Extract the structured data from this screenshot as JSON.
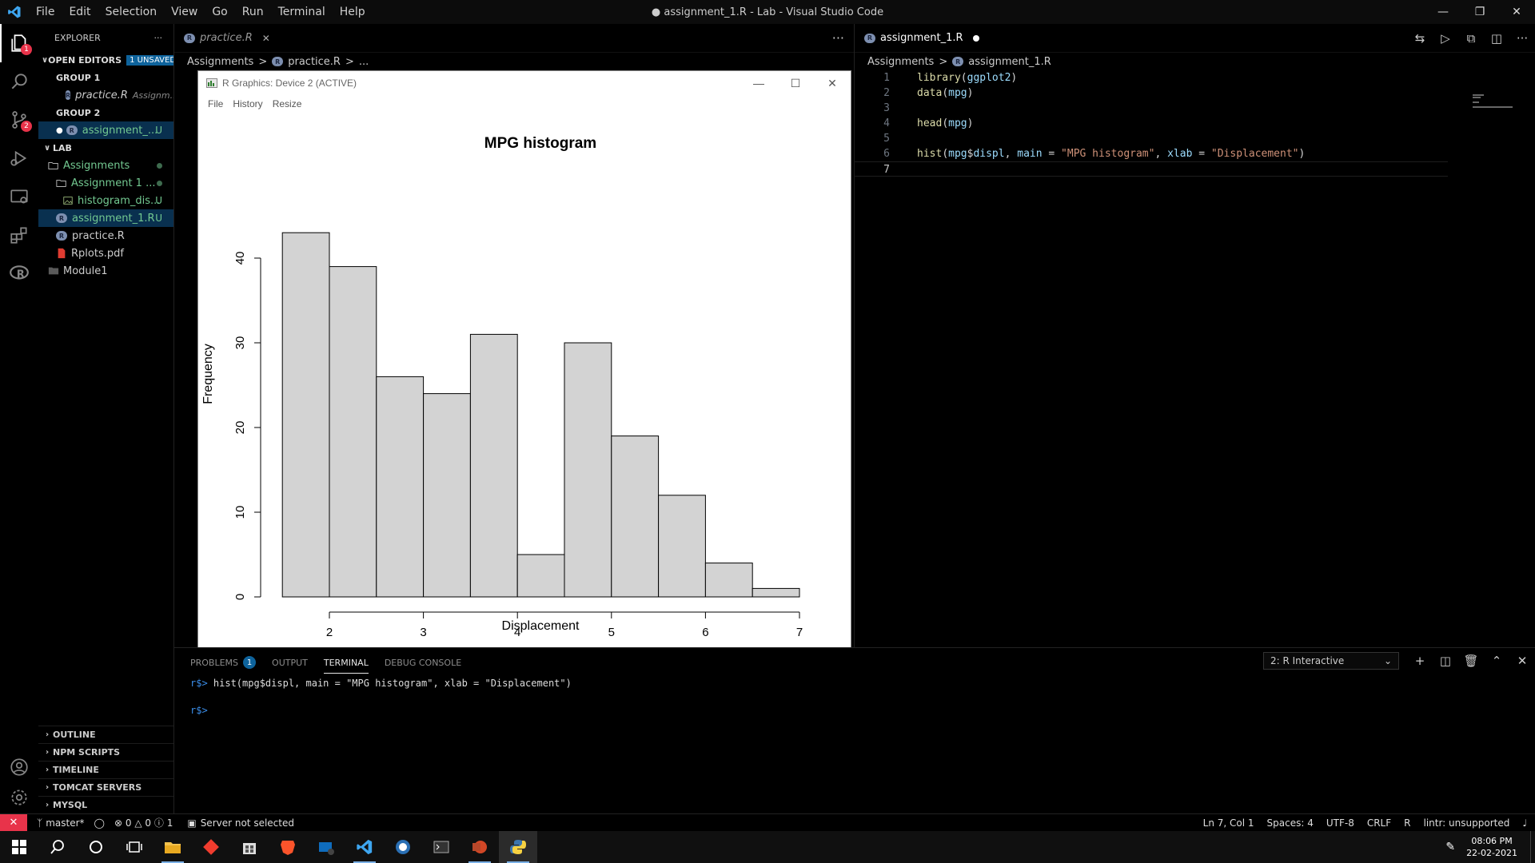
{
  "window": {
    "title": "● assignment_1.R - Lab - Visual Studio Code",
    "menu": [
      "File",
      "Edit",
      "Selection",
      "View",
      "Go",
      "Run",
      "Terminal",
      "Help"
    ]
  },
  "activity_bar": {
    "items": [
      "explorer-icon",
      "search-icon",
      "source-control-icon",
      "run-debug-icon",
      "remote-explorer-icon",
      "extensions-icon",
      "r-icon"
    ],
    "explorer_badge": "1",
    "scm_badge": "2",
    "bottom": [
      "account-icon",
      "settings-gear-icon"
    ]
  },
  "sidebar": {
    "title": "EXPLORER",
    "more": "···",
    "open_editors": {
      "label": "OPEN EDITORS",
      "badge": "1 UNSAVED",
      "group1_label": "GROUP 1",
      "group1_file": "practice.R",
      "group1_desc": "Assignm...",
      "group2_label": "GROUP 2",
      "group2_file": "assignment_...",
      "group2_status": "U"
    },
    "lab": {
      "label": "LAB",
      "items": [
        {
          "name": "Assignments",
          "status": ""
        },
        {
          "name": "Assignment 1 ...",
          "status": ""
        },
        {
          "name": "histogram_dis...",
          "status": "U"
        },
        {
          "name": "assignment_1.R",
          "status": "U"
        },
        {
          "name": "practice.R",
          "status": ""
        },
        {
          "name": "Rplots.pdf",
          "status": ""
        },
        {
          "name": "Module1",
          "status": ""
        }
      ]
    },
    "bottom_sections": [
      "OUTLINE",
      "NPM SCRIPTS",
      "TIMELINE",
      "TOMCAT SERVERS",
      "MYSQL"
    ]
  },
  "editor1": {
    "tab": "practice.R",
    "crumbs": [
      "Assignments",
      ">",
      "practice.R",
      ">",
      "..."
    ]
  },
  "editor2": {
    "tab": "assignment_1.R",
    "crumbs": [
      "Assignments",
      ">",
      "assignment_1.R"
    ],
    "lines": [
      {
        "n": "1",
        "parts": [
          [
            "fn",
            "library"
          ],
          [
            "op",
            "("
          ],
          [
            "kw",
            "ggplot2"
          ],
          [
            "op",
            ")"
          ]
        ]
      },
      {
        "n": "2",
        "parts": [
          [
            "fn",
            "data"
          ],
          [
            "op",
            "("
          ],
          [
            "kw",
            "mpg"
          ],
          [
            "op",
            ")"
          ]
        ]
      },
      {
        "n": "3",
        "parts": []
      },
      {
        "n": "4",
        "parts": [
          [
            "fn",
            "head"
          ],
          [
            "op",
            "("
          ],
          [
            "kw",
            "mpg"
          ],
          [
            "op",
            ")"
          ]
        ]
      },
      {
        "n": "5",
        "parts": []
      },
      {
        "n": "6",
        "parts": [
          [
            "fn",
            "hist"
          ],
          [
            "op",
            "("
          ],
          [
            "kw",
            "mpg"
          ],
          [
            "op",
            "$"
          ],
          [
            "kw",
            "displ"
          ],
          [
            "op",
            ", "
          ],
          [
            "kw",
            "main"
          ],
          [
            "op",
            " = "
          ],
          [
            "st",
            "\"MPG histogram\""
          ],
          [
            "op",
            ", "
          ],
          [
            "kw",
            "xlab"
          ],
          [
            "op",
            " = "
          ],
          [
            "st",
            "\"Displacement\""
          ],
          [
            "op",
            ")"
          ]
        ]
      },
      {
        "n": "7",
        "parts": []
      }
    ]
  },
  "rgraphics": {
    "title": "R Graphics: Device 2 (ACTIVE)",
    "menu": [
      "File",
      "History",
      "Resize"
    ]
  },
  "chart_data": {
    "type": "bar",
    "title": "MPG histogram",
    "xlabel": "Displacement",
    "ylabel": "Frequency",
    "bin_edges": [
      1.5,
      2,
      2.5,
      3,
      3.5,
      4,
      4.5,
      5,
      5.5,
      6,
      6.5,
      7
    ],
    "values": [
      43,
      39,
      26,
      24,
      31,
      5,
      30,
      19,
      12,
      4,
      1
    ],
    "x_ticks": [
      2,
      3,
      4,
      5,
      6,
      7
    ],
    "y_ticks": [
      0,
      10,
      20,
      30,
      40
    ],
    "xlim": [
      2,
      7
    ],
    "ylim": [
      0,
      40
    ],
    "grid": false,
    "bar_color": "#d3d3d3"
  },
  "panel": {
    "tabs": [
      "PROBLEMS",
      "OUTPUT",
      "TERMINAL",
      "DEBUG CONSOLE"
    ],
    "problems_badge": "1",
    "terminal_select": "2: R Interactive",
    "prompt": "r$>",
    "command": " hist(mpg$displ, main = \"MPG histogram\", xlab = \"Displacement\")"
  },
  "statusbar": {
    "branch": "master*",
    "errors": "0",
    "warnings": "0",
    "info": "1",
    "server": "Server not selected",
    "position": "Ln 7, Col 1",
    "spaces": "Spaces: 4",
    "encoding": "UTF-8",
    "eol": "CRLF",
    "language": "R",
    "lintr": "lintr: unsupported"
  },
  "taskbar": {
    "clock_time": "08:06 PM",
    "clock_date": "22-02-2021",
    "apps": [
      "windows-start-icon",
      "search-icon",
      "cortana-icon",
      "task-view-icon",
      "file-explorer-icon",
      "git-app-icon",
      "store-icon",
      "brave-icon",
      "mail-icon",
      "vscode-icon",
      "r-app-icon",
      "terminal-icon",
      "powerpoint-icon",
      "python-icon"
    ]
  },
  "colors": {
    "accent": "#0e639c",
    "remote": "#e8334a",
    "git_untracked": "#73c991"
  }
}
